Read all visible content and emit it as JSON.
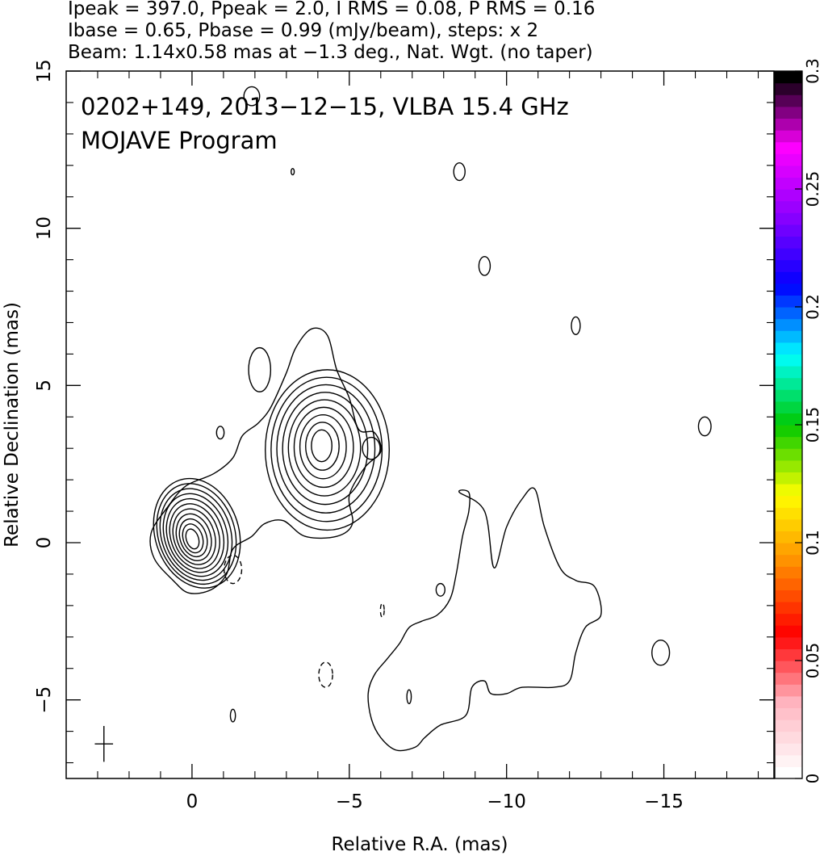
{
  "header": {
    "line1": "Ipeak = 397.0, Ppeak = 2.0, I RMS = 0.08, P RMS = 0.16",
    "line2": "Ibase = 0.65, Pbase = 0.99 (mJy/beam), steps: x 2",
    "line3": "Beam: 1.14x0.58 mas at −1.3 deg., Nat. Wgt. (no taper)"
  },
  "chart_data": {
    "type": "contour",
    "annotations": [
      "0202+149, 2013−12−15, VLBA 15.4 GHz",
      "MOJAVE Program"
    ],
    "xlabel": "Relative R.A. (mas)",
    "ylabel": "Relative Declination (mas)",
    "xlim": [
      4,
      -18.5
    ],
    "ylim": [
      -7.5,
      15
    ],
    "x_ticks": [
      0,
      -5,
      -10,
      -15
    ],
    "x_tick_labels": [
      "0",
      "−5",
      "−10",
      "−15"
    ],
    "y_ticks": [
      -5,
      0,
      5,
      10,
      15
    ],
    "y_tick_labels": [
      "−5",
      "0",
      "5",
      "10",
      "15"
    ],
    "colorbar": {
      "range": [
        0,
        0.3
      ],
      "ticks": [
        0,
        0.05,
        0.1,
        0.15,
        0.2,
        0.25,
        0.3
      ],
      "tick_labels": [
        "0",
        "0.05",
        "0.1",
        "0.15",
        "0.2",
        "0.25",
        "0.3"
      ],
      "colors": [
        "#ffffff",
        "#ffb6c1",
        "#ff0000",
        "#ff8c00",
        "#ffff00",
        "#00c800",
        "#00ffff",
        "#0000ff",
        "#8b00ff",
        "#ff00ff",
        "#000000"
      ]
    },
    "beam": {
      "major_mas": 1.14,
      "minor_mas": 0.58,
      "pa_deg": -1.3,
      "center": [
        2.8,
        -6.4
      ]
    },
    "core": {
      "center": [
        0,
        0.1
      ],
      "levels": 11
    },
    "knot": {
      "center": [
        -4.1,
        3.1
      ],
      "levels": 9
    },
    "small_contours": [
      {
        "center": [
          -1.9,
          14.2
        ],
        "rx": 0.25,
        "ry": 0.3,
        "dashed": false
      },
      {
        "center": [
          -3.2,
          11.8
        ],
        "rx": 0.05,
        "ry": 0.1,
        "dashed": false
      },
      {
        "center": [
          -8.5,
          11.8
        ],
        "rx": 0.18,
        "ry": 0.28,
        "dashed": false
      },
      {
        "center": [
          -9.3,
          8.8
        ],
        "rx": 0.18,
        "ry": 0.3,
        "dashed": false
      },
      {
        "center": [
          -12.2,
          6.9
        ],
        "rx": 0.14,
        "ry": 0.28,
        "dashed": false
      },
      {
        "center": [
          -16.3,
          3.7
        ],
        "rx": 0.2,
        "ry": 0.3,
        "dashed": false
      },
      {
        "center": [
          -0.9,
          3.5
        ],
        "rx": 0.12,
        "ry": 0.2,
        "dashed": false
      },
      {
        "center": [
          -7.9,
          -1.5
        ],
        "rx": 0.14,
        "ry": 0.2,
        "dashed": false
      },
      {
        "center": [
          -14.9,
          -3.5
        ],
        "rx": 0.28,
        "ry": 0.4,
        "dashed": false
      },
      {
        "center": [
          -1.3,
          -5.5
        ],
        "rx": 0.08,
        "ry": 0.2,
        "dashed": false
      },
      {
        "center": [
          -6.9,
          -4.9
        ],
        "rx": 0.07,
        "ry": 0.22,
        "dashed": false
      },
      {
        "center": [
          -1.3,
          -0.85
        ],
        "rx": 0.28,
        "ry": 0.45,
        "dashed": true
      },
      {
        "center": [
          -4.25,
          -4.2
        ],
        "rx": 0.22,
        "ry": 0.4,
        "dashed": true
      },
      {
        "center": [
          -6.05,
          -2.15
        ],
        "rx": 0.06,
        "ry": 0.22,
        "dashed": true
      }
    ],
    "diffuse_region": [
      [
        -8.8,
        1.6
      ],
      [
        -8.5,
        1.6
      ],
      [
        -9.3,
        1.0
      ],
      [
        -9.6,
        -0.8
      ],
      [
        -10.0,
        0.5
      ],
      [
        -10.5,
        1.4
      ],
      [
        -10.9,
        1.7
      ],
      [
        -11.2,
        0.5
      ],
      [
        -11.7,
        -0.8
      ],
      [
        -12.2,
        -1.2
      ],
      [
        -12.8,
        -1.4
      ],
      [
        -13.0,
        -2.3
      ],
      [
        -12.5,
        -2.7
      ],
      [
        -12.2,
        -3.5
      ],
      [
        -12.0,
        -4.4
      ],
      [
        -11.5,
        -4.6
      ],
      [
        -10.5,
        -4.6
      ],
      [
        -10.0,
        -4.8
      ],
      [
        -9.5,
        -4.8
      ],
      [
        -9.3,
        -4.4
      ],
      [
        -8.9,
        -4.6
      ],
      [
        -8.7,
        -5.5
      ],
      [
        -7.9,
        -5.8
      ],
      [
        -7.4,
        -6.2
      ],
      [
        -7.1,
        -6.5
      ],
      [
        -6.5,
        -6.6
      ],
      [
        -6.0,
        -6.2
      ],
      [
        -5.7,
        -5.6
      ],
      [
        -5.6,
        -4.8
      ],
      [
        -5.8,
        -4.2
      ],
      [
        -6.2,
        -3.7
      ],
      [
        -6.6,
        -3.2
      ],
      [
        -6.9,
        -2.7
      ],
      [
        -7.3,
        -2.5
      ],
      [
        -7.8,
        -2.3
      ],
      [
        -8.2,
        -1.8
      ],
      [
        -8.4,
        -1.0
      ],
      [
        -8.6,
        0.2
      ],
      [
        -8.8,
        1.0
      ]
    ]
  }
}
